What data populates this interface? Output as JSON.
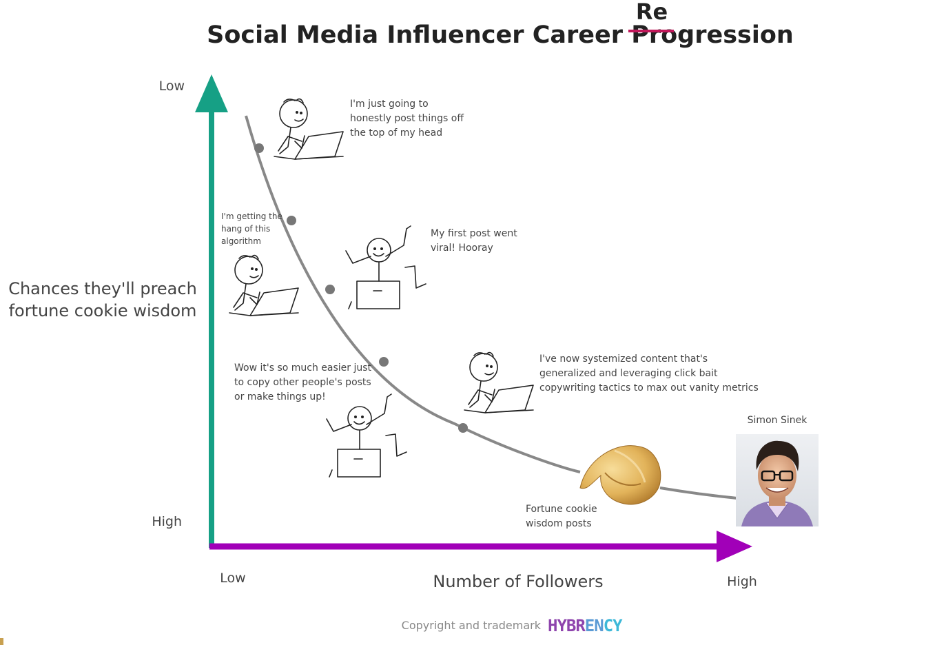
{
  "title": {
    "main": "Social Media Influencer Career Progression",
    "struck_part": "Pro",
    "correction": "Re"
  },
  "axes": {
    "y": {
      "label_line1": "Chances they'll preach",
      "label_line2": "fortune cookie wisdom",
      "top": "Low",
      "bottom": "High",
      "color": "#16a085"
    },
    "x": {
      "label": "Number of Followers",
      "left": "Low",
      "right": "High",
      "color": "#a100b8"
    }
  },
  "annotations": {
    "stage1": [
      "I'm just going to",
      "honestly post things off",
      "the top of my head"
    ],
    "stage2": [
      "I'm getting the",
      "hang of this",
      "algorithm"
    ],
    "stage3": [
      "My first post went",
      "viral! Hooray"
    ],
    "stage4": [
      "Wow it's so much easier just",
      "to copy other people's posts",
      "or make things up!"
    ],
    "stage5": [
      "I've now systemized content that's",
      "generalized and leveraging click bait",
      "copywriting tactics to max out vanity metrics"
    ],
    "cookie": [
      "Fortune cookie",
      "wisdom posts"
    ],
    "person": "Simon Sinek"
  },
  "footer": {
    "copyright": "Copyright and trademark",
    "brand_parts": [
      "HYBR",
      "EN",
      "CY"
    ],
    "brand_colors": [
      "#8e44ad",
      "#5b9bd5",
      "#3db8d8"
    ]
  },
  "colors": {
    "curve": "#888888",
    "strike": "#c2185b"
  }
}
